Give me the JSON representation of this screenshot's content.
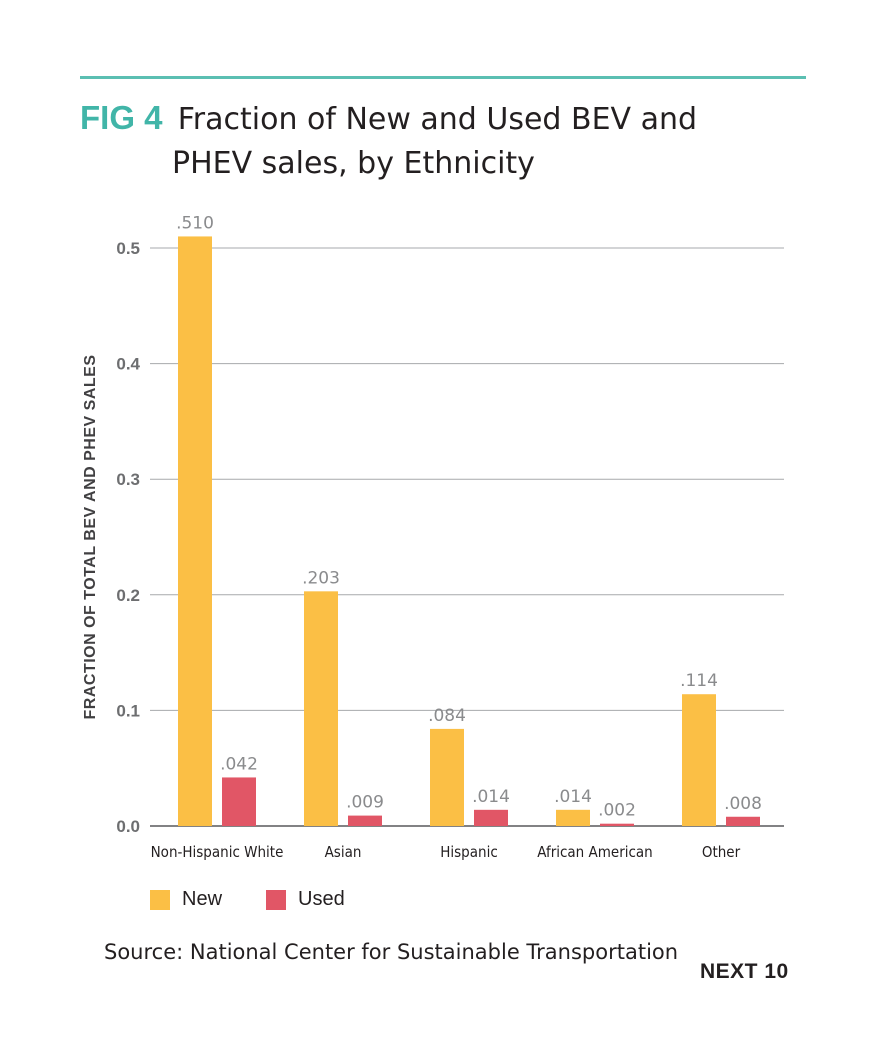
{
  "figure": {
    "fig_label": "FIG 4",
    "title_line1": "Fraction of New and Used BEV and",
    "title_line2": "PHEV sales, by Ethnicity",
    "source": "Source: National Center for Sustainable Transportation",
    "brand": "NEXT 10",
    "accent_color": "#41b5a8"
  },
  "chart_data": {
    "type": "bar",
    "title": "Fraction of New and Used BEV and PHEV sales, by Ethnicity",
    "ylabel": "FRACTION OF TOTAL BEV AND PHEV SALES",
    "xlabel": "",
    "ylim": [
      0,
      0.5
    ],
    "yticks": [
      0.0,
      0.1,
      0.2,
      0.3,
      0.4,
      0.5
    ],
    "ytick_labels": [
      "0.0",
      "0.1",
      "0.2",
      "0.3",
      "0.4",
      "0.5"
    ],
    "grid": true,
    "legend_position": "bottom-left",
    "categories": [
      "Non-Hispanic White",
      "Asian",
      "Hispanic",
      "African American",
      "Other"
    ],
    "series": [
      {
        "name": "New",
        "color": "#fbbf45",
        "values": [
          0.51,
          0.203,
          0.084,
          0.014,
          0.114
        ],
        "labels": [
          ".510",
          ".203",
          ".084",
          ".014",
          ".114"
        ]
      },
      {
        "name": "Used",
        "color": "#e15666",
        "values": [
          0.042,
          0.009,
          0.014,
          0.002,
          0.008
        ],
        "labels": [
          ".042",
          ".009",
          ".014",
          ".002",
          ".008"
        ]
      }
    ]
  }
}
